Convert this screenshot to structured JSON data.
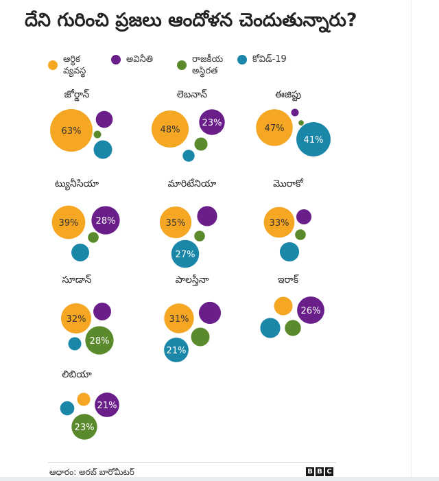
{
  "title": "దేని గురించి ప్రజలు ఆందోళన చెందుతున్నారు?",
  "colors": {
    "economy": "#f5a623",
    "corruption": "#6a1e8a",
    "stability": "#5a8a2b",
    "covid": "#1b87a8"
  },
  "legend": [
    {
      "key": "economy",
      "label": "ఆర్థిక\nవ్యవస్థ"
    },
    {
      "key": "corruption",
      "label": "అవినీతి"
    },
    {
      "key": "stability",
      "label": "రాజకీయ\nఅస్థిరత"
    },
    {
      "key": "covid",
      "label": "కోవిడ్-19"
    }
  ],
  "source": "ఆధారం: అరబ్ బారోమీటర్",
  "logo": [
    "B",
    "B",
    "C"
  ],
  "chart_data": {
    "type": "bubble",
    "title": "దేని గురించి ప్రజలు ఆందోళన చెందుతున్నారు?",
    "series": [
      "economy",
      "corruption",
      "stability",
      "covid"
    ],
    "countries": [
      {
        "name": "జోర్డాన్",
        "values": {
          "economy": 63,
          "corruption": 10,
          "stability": 2,
          "covid": 12
        },
        "labels": [
          "economy"
        ]
      },
      {
        "name": "లెబనాన్",
        "values": {
          "economy": 48,
          "corruption": 23,
          "stability": 6,
          "covid": 5
        },
        "labels": [
          "economy",
          "corruption"
        ]
      },
      {
        "name": "ఈజిప్టు",
        "values": {
          "economy": 47,
          "corruption": 2,
          "stability": 1,
          "covid": 41
        },
        "labels": [
          "economy",
          "covid"
        ]
      },
      {
        "name": "ట్యునీసియా",
        "values": {
          "economy": 39,
          "corruption": 28,
          "stability": 4,
          "covid": 11
        },
        "labels": [
          "economy",
          "corruption"
        ]
      },
      {
        "name": "మారిటేనియా",
        "values": {
          "economy": 35,
          "corruption": 14,
          "stability": 4,
          "covid": 27
        },
        "labels": [
          "economy",
          "covid"
        ]
      },
      {
        "name": "మొరాకో",
        "values": {
          "economy": 33,
          "corruption": 8,
          "stability": 4,
          "covid": 13
        },
        "labels": [
          "economy"
        ]
      },
      {
        "name": "సూడాన్",
        "values": {
          "economy": 32,
          "corruption": 11,
          "stability": 28,
          "covid": 6
        },
        "labels": [
          "economy",
          "stability"
        ]
      },
      {
        "name": "పాలస్తీనా",
        "values": {
          "economy": 31,
          "corruption": 17,
          "stability": 12,
          "covid": 21
        },
        "labels": [
          "economy",
          "covid"
        ]
      },
      {
        "name": "ఇరాక్",
        "values": {
          "economy": 12,
          "corruption": 26,
          "stability": 9,
          "covid": 14
        },
        "labels": [
          "corruption"
        ]
      },
      {
        "name": "లిబియా",
        "values": {
          "economy": 6,
          "corruption": 21,
          "stability": 23,
          "covid": 7
        },
        "labels": [
          "corruption",
          "stability"
        ]
      }
    ]
  }
}
